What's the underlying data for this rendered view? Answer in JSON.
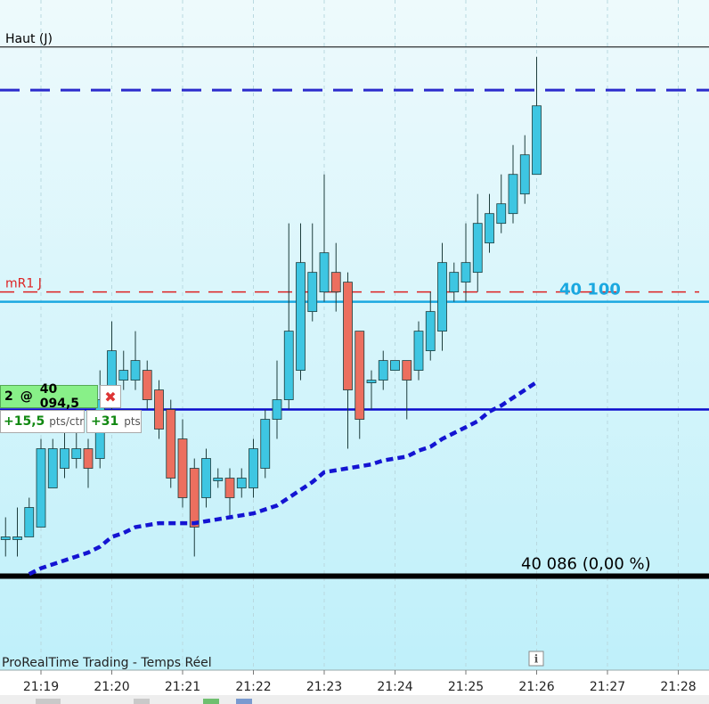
{
  "chart_data": {
    "type": "candlestick",
    "ylim": [
      40081.2,
      40115.4
    ],
    "xticks": [
      "21:19",
      "21:20",
      "21:21",
      "21:22",
      "21:23",
      "21:24",
      "21:25",
      "21:26",
      "21:27",
      "21:28"
    ],
    "up_color": "#3ec6e2",
    "down_color": "#ec6f5f",
    "open": [
      40088,
      40088,
      40088,
      40088.5,
      40090.5,
      40091.5,
      40092,
      40092.5,
      40092,
      40095,
      40096,
      40096,
      40096.5,
      40095.5,
      40094.5,
      40093,
      40091.5,
      40090,
      40091,
      40091,
      40090.5,
      40090.5,
      40091.5,
      40094,
      40095,
      40096.5,
      40099.5,
      40100.5,
      40101.5,
      40101,
      40098.5,
      40096,
      40096,
      40096.5,
      40097,
      40096.5,
      40097.5,
      40098.5,
      40100.5,
      40101,
      40101.5,
      40103,
      40104,
      40104.5,
      40105.5,
      40106.5
    ],
    "high": [
      40089,
      40089.5,
      40090,
      40093,
      40093,
      40093.5,
      40093.5,
      40093,
      40096.5,
      40099,
      40097.5,
      40098.5,
      40097,
      40096,
      40095,
      40094,
      40092,
      40092.5,
      40091.5,
      40091.5,
      40091.5,
      40093,
      40094.5,
      40097,
      40104,
      40104,
      40104,
      40106.5,
      40103,
      40101.5,
      40098.5,
      40096.5,
      40097.5,
      40097,
      40097,
      40099,
      40100.5,
      40103,
      40102,
      40104,
      40105.5,
      40105.5,
      40106.5,
      40108,
      40108.5,
      40112.5
    ],
    "low": [
      40087,
      40087,
      40088,
      40088.5,
      40090.5,
      40091,
      40091.5,
      40090.5,
      40091.5,
      40094.5,
      40095.5,
      40095.5,
      40094.5,
      40093,
      40090.5,
      40089.5,
      40087,
      40089.5,
      40090.5,
      40089,
      40090,
      40090,
      40091,
      40093,
      40094.5,
      40096,
      40099,
      40100,
      40099.5,
      40092.5,
      40093,
      40094.5,
      40095.5,
      40096.5,
      40094,
      40096,
      40097,
      40097.5,
      40100,
      40100,
      40100.5,
      40102.5,
      40103.5,
      40104,
      40105,
      40106.5
    ],
    "close": [
      40088,
      40088,
      40089.5,
      40092.5,
      40092.5,
      40092.5,
      40092.5,
      40091.5,
      40095,
      40097.5,
      40096.5,
      40097,
      40095,
      40093.5,
      40091,
      40090,
      40088.5,
      40092,
      40091,
      40090,
      40091,
      40092.5,
      40094,
      40095,
      40098.5,
      40102,
      40101.5,
      40102.5,
      40100.5,
      40095.5,
      40094,
      40096,
      40097,
      40097,
      40096,
      40098.5,
      40099.5,
      40102,
      40101.5,
      40102,
      40104,
      40104.5,
      40105,
      40106.5,
      40107.5,
      40110
    ],
    "moving_average": {
      "color": "#1414d2",
      "values": [
        null,
        null,
        40086.1,
        40086.4,
        40086.6,
        40086.8,
        40087,
        40087.2,
        40087.5,
        40088,
        40088.2,
        40088.5,
        40088.6,
        40088.7,
        40088.7,
        40088.7,
        40088.7,
        40088.8,
        40088.9,
        40089,
        40089.1,
        40089.2,
        40089.4,
        40089.6,
        40090,
        40090.4,
        40090.8,
        40091.3,
        40091.4,
        40091.5,
        40091.6,
        40091.7,
        40091.9,
        40092,
        40092.1,
        40092.4,
        40092.6,
        40093,
        40093.3,
        40093.6,
        40093.9,
        40094.4,
        40094.7,
        40095.1,
        40095.5,
        40095.9
      ]
    },
    "levels": [
      {
        "name": "Haut (J)",
        "value": 40113,
        "color": "#000000",
        "style": "thin"
      },
      {
        "value": 40110.8,
        "color": "#2b2bcc",
        "style": "dashed"
      },
      {
        "name": "mR1 J",
        "value": 40100.5,
        "color": "#dd2222",
        "style": "dashed"
      },
      {
        "label": "40 100",
        "value": 40100,
        "color": "#1aa8e0",
        "style": "solid"
      },
      {
        "value": 40094.5,
        "color": "#0a0acc",
        "style": "solid"
      },
      {
        "label": "40 086 (0,00 %)",
        "value": 40086,
        "color": "#000000",
        "style": "thick"
      }
    ]
  },
  "position": {
    "quantity": "2",
    "at": "@",
    "price": "40 094,5",
    "gain_per_contract": "+15,5",
    "gain_per_contract_unit": "pts/ctr",
    "gain": "+31",
    "gain_unit": "pts"
  },
  "footer": "ProRealTime Trading - Temps Réel"
}
